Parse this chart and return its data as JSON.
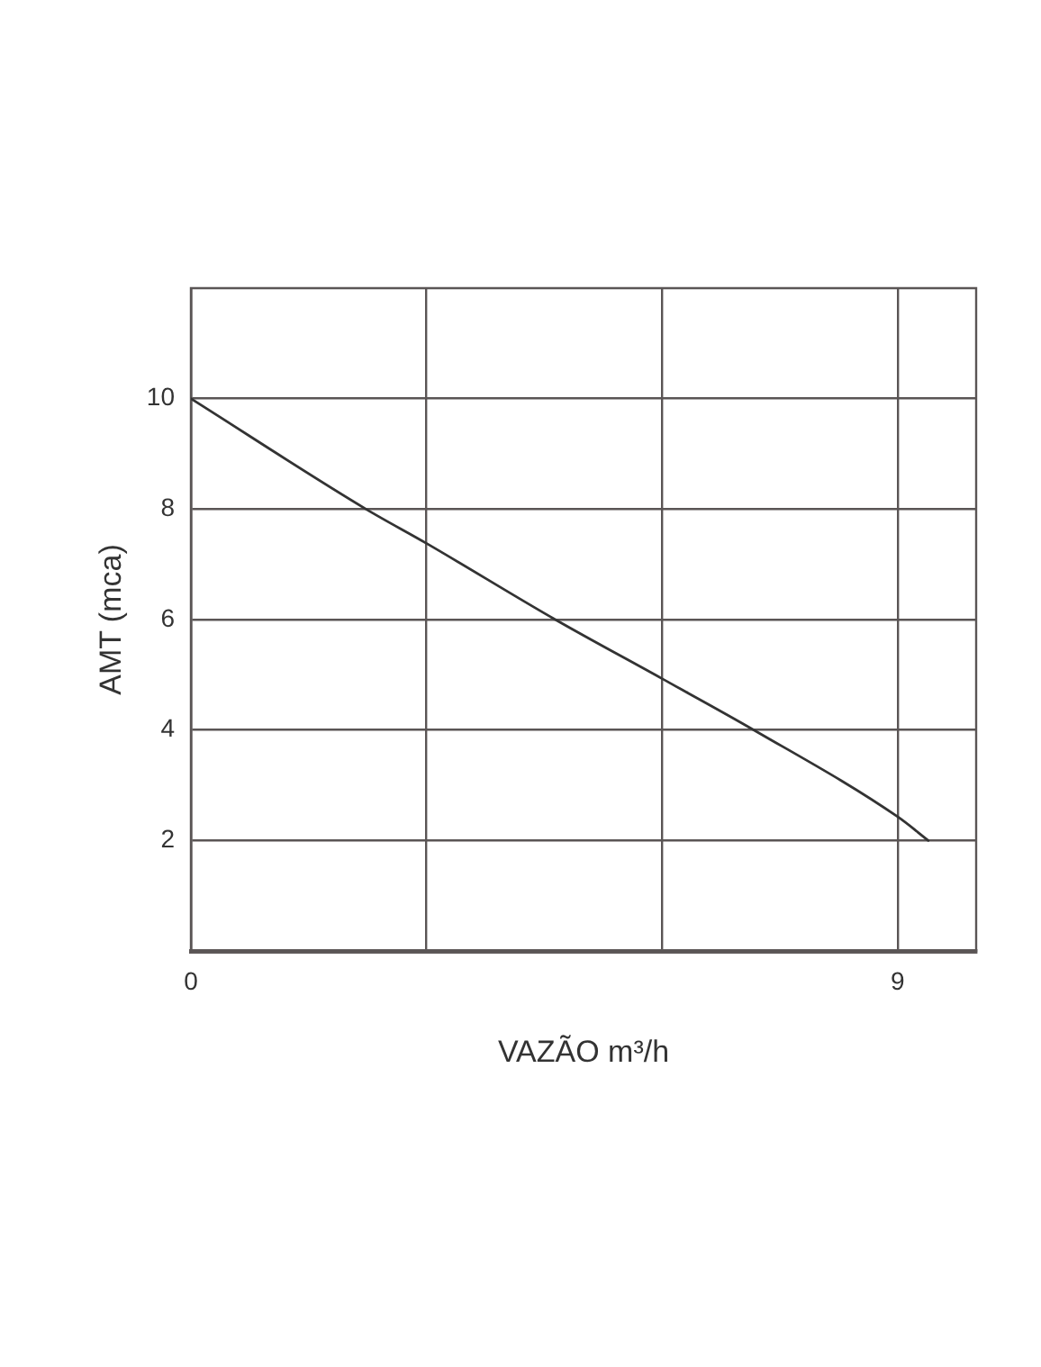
{
  "chart_data": {
    "type": "line",
    "xlabel": "VAZÃO m³/h",
    "ylabel": "AMT (mca)",
    "x": [
      0,
      2.23,
      3,
      4.64,
      6,
      7.17,
      9,
      9.39
    ],
    "series": [
      {
        "color": "#333333",
        "values": [
          10,
          8,
          7.38,
          6,
          4.93,
          4,
          2.43,
          2
        ]
      }
    ],
    "xlim": [
      0,
      10
    ],
    "ylim": [
      0,
      12
    ],
    "xticks": [
      0,
      {
        "value": 3,
        "label": null
      },
      {
        "value": 6,
        "label": null
      },
      9
    ],
    "yticks": [
      2,
      4,
      6,
      8,
      10
    ],
    "grid": true
  }
}
